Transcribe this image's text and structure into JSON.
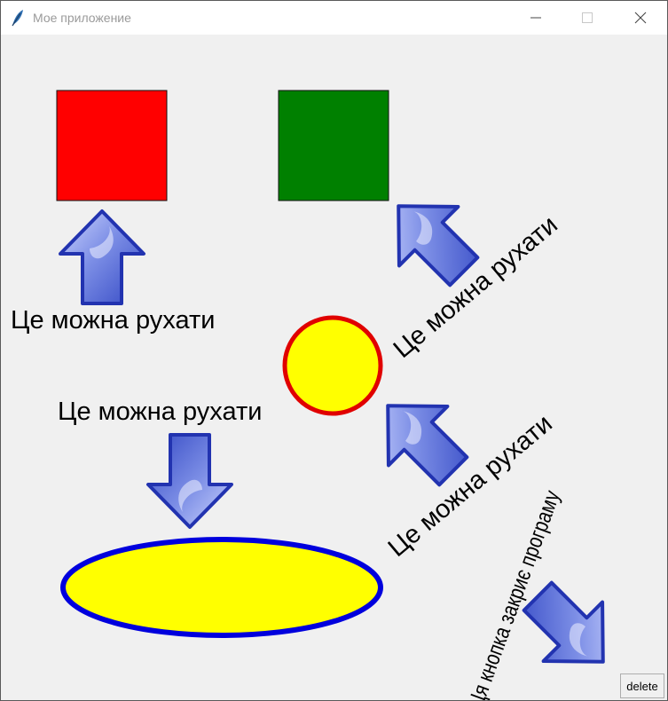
{
  "window": {
    "title": "Мое приложение"
  },
  "labels": {
    "move_left": "Це можна рухати",
    "move_diag_top": "Це можна рухати",
    "move_mid": "Це можна рухати",
    "move_diag_bottom": "Це можна рухати",
    "close_hint": "Ця кнопка закриє програму"
  },
  "buttons": {
    "delete": "delete"
  },
  "colors": {
    "red_square": "#ff0000",
    "green_square": "#008000",
    "circle_fill": "#ffff00",
    "circle_outline": "#e00000",
    "ellipse_fill": "#ffff00",
    "ellipse_outline": "#0000dd",
    "arrow": "#4a5fd0"
  }
}
